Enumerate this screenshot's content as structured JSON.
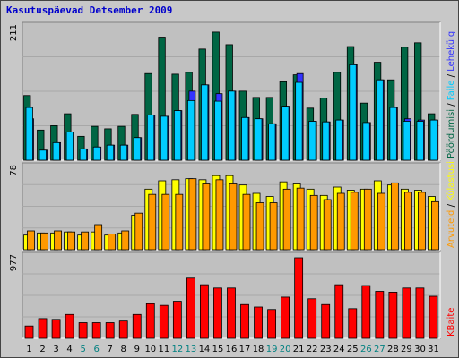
{
  "title": "Kasutuspäevad Detsember 2009",
  "colors": {
    "visits": "#006644",
    "pages": "#3333ff",
    "files": "#00ccff",
    "hits": "#ffff00",
    "sites": "#ff9900",
    "kbytes": "#ff0000",
    "weekend_label": "#008080",
    "weekday_label": "#000000"
  },
  "chart_data": [
    {
      "type": "bar",
      "panel": "top",
      "max_label": "211",
      "ylim": [
        0,
        211
      ],
      "grid": true,
      "right_labels": [
        {
          "text": "Pöördumisi",
          "color": "#006644"
        },
        {
          "text": "Faile",
          "color": "#00ccff"
        },
        {
          "text": "Lehekülgi",
          "color": "#3333ff"
        }
      ],
      "categories": [
        "1",
        "2",
        "3",
        "4",
        "5",
        "6",
        "7",
        "8",
        "9",
        "10",
        "11",
        "12",
        "13",
        "14",
        "15",
        "16",
        "17",
        "18",
        "19",
        "20",
        "21",
        "22",
        "23",
        "24",
        "25",
        "26",
        "27",
        "28",
        "29",
        "30",
        "31"
      ],
      "series": [
        {
          "name": "Pöördumisi",
          "values": [
            103,
            48,
            55,
            74,
            38,
            54,
            50,
            54,
            73,
            138,
            196,
            137,
            140,
            177,
            204,
            184,
            110,
            100,
            100,
            125,
            136,
            83,
            99,
            140,
            181,
            91,
            156,
            128,
            180,
            187,
            74
          ]
        },
        {
          "name": "Lehekülgi",
          "values": [
            66,
            16,
            28,
            45,
            18,
            21,
            24,
            24,
            36,
            72,
            70,
            79,
            110,
            120,
            106,
            110,
            68,
            66,
            58,
            86,
            138,
            62,
            61,
            64,
            152,
            60,
            128,
            84,
            66,
            64,
            64
          ]
        },
        {
          "name": "Faile",
          "values": [
            84,
            16,
            28,
            45,
            18,
            21,
            24,
            24,
            36,
            72,
            70,
            79,
            95,
            120,
            94,
            110,
            68,
            66,
            58,
            86,
            124,
            62,
            61,
            64,
            152,
            60,
            128,
            84,
            62,
            62,
            64
          ]
        }
      ]
    },
    {
      "type": "bar",
      "panel": "middle",
      "max_label": "78",
      "ylim": [
        0,
        78
      ],
      "grid": true,
      "right_labels": [
        {
          "text": "Arvuteid",
          "color": "#ff9900"
        },
        {
          "text": "Külastusi",
          "color": "#ffff00"
        }
      ],
      "categories": [
        "1",
        "2",
        "3",
        "4",
        "5",
        "6",
        "7",
        "8",
        "9",
        "10",
        "11",
        "12",
        "13",
        "14",
        "15",
        "16",
        "17",
        "18",
        "19",
        "20",
        "21",
        "22",
        "23",
        "24",
        "25",
        "26",
        "27",
        "28",
        "29",
        "30",
        "31"
      ],
      "series": [
        {
          "name": "Külastusi",
          "values": [
            14,
            16,
            16,
            17,
            14,
            17,
            14,
            16,
            33,
            58,
            66,
            67,
            68,
            67,
            71,
            71,
            62,
            54,
            51,
            65,
            63,
            58,
            52,
            60,
            57,
            58,
            66,
            62,
            58,
            57,
            51
          ]
        },
        {
          "name": "Arvuteid",
          "values": [
            18,
            16,
            18,
            17,
            17,
            24,
            15,
            18,
            35,
            53,
            53,
            53,
            68,
            63,
            67,
            63,
            53,
            45,
            45,
            58,
            59,
            52,
            48,
            54,
            55,
            58,
            54,
            64,
            55,
            55,
            46
          ]
        }
      ]
    },
    {
      "type": "bar",
      "panel": "bottom",
      "max_label": "977",
      "ylim": [
        0,
        977
      ],
      "grid": true,
      "right_labels": [
        {
          "text": "KBaite",
          "color": "#ff0000"
        }
      ],
      "categories": [
        "1",
        "2",
        "3",
        "4",
        "5",
        "6",
        "7",
        "8",
        "9",
        "10",
        "11",
        "12",
        "13",
        "14",
        "15",
        "16",
        "17",
        "18",
        "19",
        "20",
        "21",
        "22",
        "23",
        "24",
        "25",
        "26",
        "27",
        "28",
        "29",
        "30",
        "31"
      ],
      "series": [
        {
          "name": "KBaite",
          "values": [
            150,
            240,
            230,
            290,
            190,
            190,
            190,
            210,
            290,
            420,
            400,
            450,
            730,
            650,
            610,
            610,
            410,
            380,
            350,
            500,
            977,
            480,
            410,
            650,
            360,
            640,
            570,
            560,
            610,
            610,
            510
          ]
        }
      ]
    }
  ],
  "weekend_days": [
    "5",
    "6",
    "12",
    "13",
    "19",
    "20",
    "26",
    "27"
  ]
}
